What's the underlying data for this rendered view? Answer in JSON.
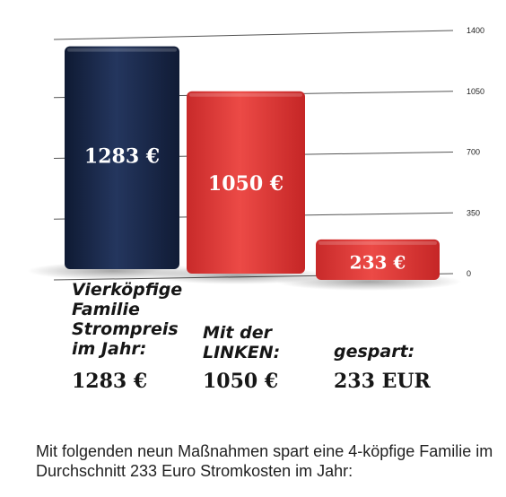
{
  "chart_data": {
    "type": "bar",
    "categories": [
      "Vierköpfige Familie Strompreis im Jahr:",
      "Mit der LINKEN:",
      "gespart:"
    ],
    "values": [
      1283,
      1050,
      233
    ],
    "data_labels": [
      "1283 €",
      "1050 €",
      "233 €"
    ],
    "colors": [
      "#1c2a4a",
      "#e23c3c",
      "#e23c3c"
    ],
    "yticks": [
      0,
      350,
      700,
      1050,
      1400
    ],
    "ylim": [
      0,
      1400
    ],
    "grid": true,
    "axis_position": "right"
  },
  "labels": [
    {
      "lines": [
        "Vierköpfige",
        "Familie",
        "Strompreis",
        "im Jahr:"
      ],
      "amount": "1283 €"
    },
    {
      "lines": [
        "Mit der",
        "LINKEN:"
      ],
      "amount": "1050 €"
    },
    {
      "lines": [
        "gespart:"
      ],
      "amount": "233 EUR"
    }
  ],
  "caption": "Mit folgenden neun Maßnahmen spart eine 4-köpfige Familie im Durchschnitt 233 Euro Stromkosten im Jahr:"
}
